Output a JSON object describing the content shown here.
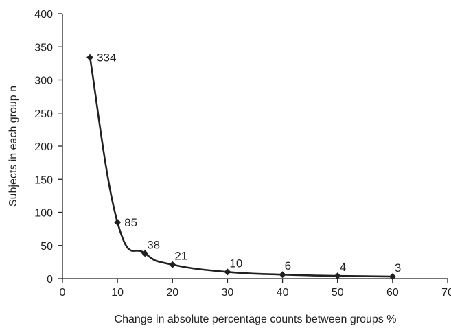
{
  "chart_data": {
    "type": "line",
    "title": "",
    "xlabel": "Change in absolute percentage counts between groups %",
    "ylabel": "Subjects in each group n",
    "xlim": [
      0,
      70
    ],
    "ylim": [
      0,
      400
    ],
    "x_ticks": [
      0,
      10,
      20,
      30,
      40,
      50,
      60,
      70
    ],
    "y_ticks": [
      0,
      50,
      100,
      150,
      200,
      250,
      300,
      350,
      400
    ],
    "grid": false,
    "legend": "none",
    "marker": "diamond",
    "smooth": true,
    "line_color": "#231f20",
    "series": [
      {
        "x": [
          5,
          10,
          15,
          20,
          30,
          40,
          50,
          60
        ],
        "y": [
          334,
          85,
          38,
          21,
          10,
          6,
          4,
          3
        ],
        "labels": [
          "334",
          "85",
          "38",
          "21",
          "10",
          "6",
          "4",
          "3"
        ]
      }
    ]
  }
}
